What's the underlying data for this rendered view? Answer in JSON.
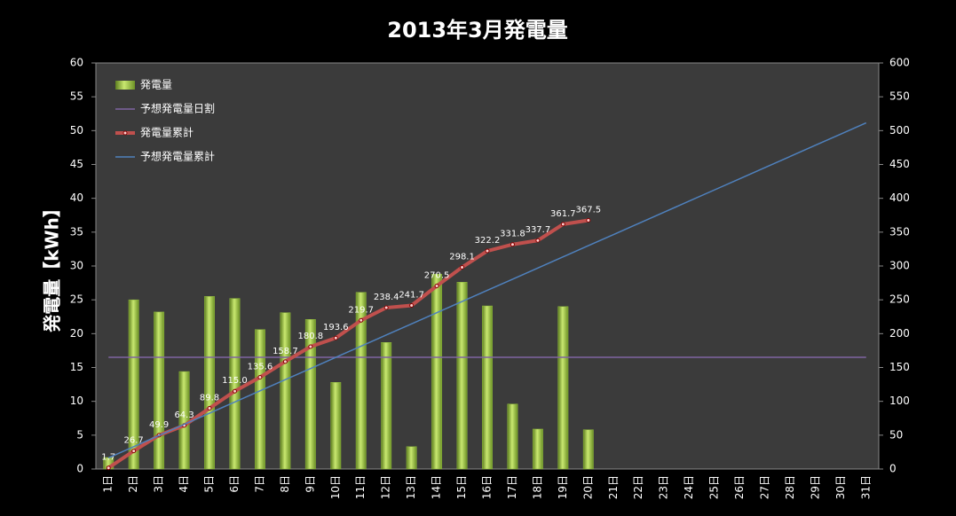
{
  "chart_data": {
    "type": "bar",
    "title": "2013年3月発電量",
    "y_label": "発電量【kWh】",
    "categories": [
      "1日",
      "2日",
      "3日",
      "4日",
      "5日",
      "6日",
      "7日",
      "8日",
      "9日",
      "10日",
      "11日",
      "12日",
      "13日",
      "14日",
      "15日",
      "16日",
      "17日",
      "18日",
      "19日",
      "20日",
      "21日",
      "22日",
      "23日",
      "24日",
      "25日",
      "26日",
      "27日",
      "28日",
      "29日",
      "30日",
      "31日"
    ],
    "series": [
      {
        "name": "発電量",
        "type": "bar",
        "color": "#8fba3c",
        "values": [
          1.7,
          25.0,
          23.2,
          14.4,
          25.5,
          25.2,
          20.6,
          23.1,
          22.1,
          12.8,
          26.1,
          18.7,
          3.3,
          28.8,
          27.6,
          24.1,
          9.6,
          5.9,
          24.0,
          5.8,
          null,
          null,
          null,
          null,
          null,
          null,
          null,
          null,
          null,
          null,
          null
        ]
      },
      {
        "name": "予想発電量日割",
        "type": "line",
        "color": "#8064a2",
        "values": [
          16.5,
          16.5,
          16.5,
          16.5,
          16.5,
          16.5,
          16.5,
          16.5,
          16.5,
          16.5,
          16.5,
          16.5,
          16.5,
          16.5,
          16.5,
          16.5,
          16.5,
          16.5,
          16.5,
          16.5,
          16.5,
          16.5,
          16.5,
          16.5,
          16.5,
          16.5,
          16.5,
          16.5,
          16.5,
          16.5,
          16.5
        ]
      },
      {
        "name": "発電量累計",
        "type": "line",
        "axis": "y2",
        "color": "#c0504d",
        "markers": true,
        "values": [
          1.7,
          26.7,
          49.9,
          64.3,
          89.8,
          115.0,
          135.6,
          158.7,
          180.8,
          193.6,
          219.7,
          238.4,
          241.7,
          270.5,
          298.1,
          322.2,
          331.8,
          337.7,
          361.7,
          367.5,
          null,
          null,
          null,
          null,
          null,
          null,
          null,
          null,
          null,
          null,
          null
        ],
        "value_labels": [
          "1.7",
          "26.7",
          "49.9",
          "64.3",
          "89.8",
          "115.0",
          "135.6",
          "158.7",
          "180.8",
          "193.6",
          "219.7",
          "238.4",
          "241.7",
          "270.5",
          "298.1",
          "322.2",
          "331.8",
          "337.7",
          "361.7",
          "367.5",
          null,
          null,
          null,
          null,
          null,
          null,
          null,
          null,
          null,
          null,
          null
        ]
      },
      {
        "name": "予想発電量累計",
        "type": "line",
        "axis": "y2",
        "color": "#4f81bd",
        "values": [
          16.5,
          33,
          49.5,
          66,
          82.5,
          99,
          115.5,
          132,
          148.5,
          165,
          181.5,
          198,
          214.5,
          231,
          247.5,
          264,
          280.5,
          297,
          313.5,
          330,
          346.5,
          363,
          379.5,
          396,
          412.5,
          429,
          445.5,
          462,
          478.5,
          495,
          511.5
        ]
      }
    ],
    "ylim": [
      0,
      60
    ],
    "yticks": [
      0,
      5,
      10,
      15,
      20,
      25,
      30,
      35,
      40,
      45,
      50,
      55,
      60
    ],
    "y2lim": [
      0,
      600
    ],
    "y2ticks": [
      0,
      50,
      100,
      150,
      200,
      250,
      300,
      350,
      400,
      450,
      500,
      550,
      600
    ],
    "legend": "upper left",
    "grid": false
  }
}
